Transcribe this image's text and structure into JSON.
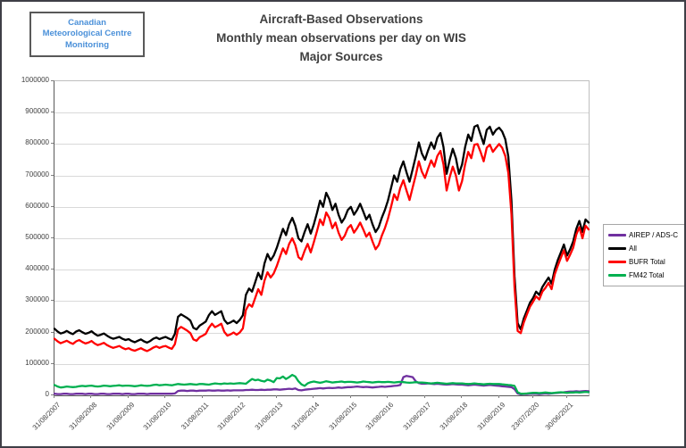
{
  "window": {
    "background": "#FFFFFF",
    "frame_border": "#3F3F46"
  },
  "logo": {
    "lines": [
      "Canadian",
      "Meteorological Centre",
      "Monitoring"
    ],
    "text_color": "#4A90D9",
    "border_color": "#595959"
  },
  "title": {
    "lines": [
      "Aircraft-Based Observations",
      "Monthly mean observations per day on WIS",
      "Major Sources"
    ],
    "color": "#404040"
  },
  "legend": {
    "border_color": "#A6A6A6",
    "items": [
      {
        "label": "AIREP / ADS-C",
        "color": "#7030A0"
      },
      {
        "label": "All",
        "color": "#000000"
      },
      {
        "label": "BUFR Total",
        "color": "#FF0000"
      },
      {
        "label": "FM42 Total",
        "color": "#00B050"
      }
    ]
  },
  "axis": {
    "grid_color": "#D9D9D9",
    "axis_color": "#808080",
    "tick_label_color": "#404040"
  },
  "chart_data": {
    "type": "line",
    "title": "Aircraft-Based Observations — Monthly mean observations per day on WIS — Major Sources",
    "xlabel": "",
    "ylabel": "",
    "unit": "observations per day",
    "value_scale": 1000,
    "note": "series values are monthly means in thousands of observations per day; multiply by value_scale for axis units",
    "ylim": [
      0,
      1000000
    ],
    "y_tick_step": 100000,
    "y_tick_labels": [
      "0",
      "100000",
      "200000",
      "300000",
      "400000",
      "500000",
      "600000",
      "700000",
      "800000",
      "900000",
      "1000000"
    ],
    "grid": "horizontal",
    "legend_position": "right",
    "n_points": 174,
    "x_start_label": "31/08/2007",
    "x_tick_labels": [
      "31/08/2007",
      "31/08/2008",
      "31/08/2009",
      "31/08/2010",
      "31/08/2011",
      "31/08/2012",
      "31/08/2013",
      "31/08/2014",
      "31/08/2015",
      "31/08/2016",
      "31/08/2017",
      "31/08/2018",
      "31/08/2019",
      "23/07/2020",
      "30/06/2021"
    ],
    "x_tick_indices": [
      0,
      12,
      24,
      36,
      48,
      60,
      72,
      84,
      96,
      108,
      120,
      132,
      144,
      155,
      166
    ],
    "series": [
      {
        "name": "AIREP / ADS-C",
        "color": "#7030A0",
        "values": [
          5,
          4,
          4,
          5,
          5,
          4,
          4,
          5,
          5,
          5,
          4,
          5,
          5,
          4,
          4,
          5,
          5,
          4,
          4,
          5,
          5,
          5,
          4,
          5,
          5,
          4,
          4,
          5,
          5,
          5,
          4,
          5,
          5,
          5,
          5,
          5,
          5,
          5,
          5,
          6,
          14,
          15,
          15,
          14,
          15,
          15,
          14,
          15,
          15,
          15,
          16,
          15,
          15,
          16,
          15,
          15,
          16,
          15,
          16,
          16,
          16,
          16,
          17,
          17,
          18,
          17,
          17,
          18,
          17,
          18,
          18,
          19,
          19,
          18,
          19,
          20,
          21,
          20,
          22,
          17,
          16,
          18,
          19,
          20,
          21,
          22,
          23,
          22,
          23,
          24,
          23,
          24,
          25,
          24,
          25,
          26,
          26,
          27,
          28,
          27,
          26,
          27,
          26,
          25,
          26,
          27,
          28,
          27,
          28,
          29,
          30,
          31,
          33,
          58,
          62,
          60,
          58,
          45,
          39,
          37,
          37,
          38,
          37,
          36,
          37,
          36,
          35,
          34,
          35,
          36,
          35,
          34,
          34,
          33,
          32,
          33,
          34,
          33,
          32,
          31,
          32,
          33,
          32,
          31,
          30,
          29,
          28,
          27,
          26,
          20,
          6,
          3,
          4,
          4,
          5,
          5,
          5,
          4,
          5,
          6,
          5,
          6,
          7,
          8,
          9,
          10,
          11,
          12,
          12,
          13,
          12,
          13,
          14,
          13
        ]
      },
      {
        "name": "All",
        "color": "#000000",
        "values": [
          212,
          203,
          197,
          200,
          205,
          199,
          195,
          203,
          207,
          201,
          196,
          199,
          204,
          196,
          190,
          193,
          197,
          190,
          184,
          180,
          183,
          186,
          180,
          176,
          179,
          173,
          169,
          174,
          178,
          172,
          168,
          173,
          180,
          184,
          179,
          183,
          186,
          181,
          177,
          196,
          250,
          258,
          252,
          246,
          238,
          215,
          210,
          222,
          228,
          235,
          255,
          268,
          256,
          262,
          268,
          240,
          228,
          232,
          238,
          230,
          240,
          255,
          320,
          340,
          330,
          360,
          390,
          370,
          420,
          450,
          430,
          445,
          470,
          500,
          530,
          510,
          545,
          565,
          540,
          500,
          490,
          520,
          545,
          515,
          545,
          580,
          620,
          600,
          645,
          625,
          590,
          610,
          575,
          550,
          565,
          590,
          600,
          575,
          590,
          610,
          585,
          560,
          575,
          545,
          520,
          535,
          565,
          590,
          620,
          660,
          700,
          680,
          720,
          745,
          710,
          680,
          720,
          760,
          805,
          770,
          750,
          780,
          805,
          785,
          820,
          835,
          790,
          705,
          750,
          785,
          755,
          705,
          735,
          790,
          830,
          810,
          855,
          860,
          830,
          800,
          845,
          855,
          830,
          845,
          852,
          840,
          815,
          760,
          620,
          380,
          230,
          210,
          245,
          270,
          295,
          310,
          330,
          320,
          345,
          360,
          375,
          355,
          400,
          430,
          455,
          480,
          445,
          465,
          490,
          530,
          555,
          520,
          560,
          550
        ]
      },
      {
        "name": "BUFR Total",
        "color": "#FF0000",
        "values": [
          180,
          172,
          166,
          170,
          174,
          168,
          164,
          172,
          176,
          170,
          165,
          168,
          173,
          165,
          160,
          163,
          167,
          160,
          155,
          151,
          154,
          157,
          151,
          147,
          150,
          145,
          142,
          146,
          150,
          145,
          141,
          146,
          152,
          156,
          151,
          155,
          157,
          152,
          148,
          163,
          210,
          218,
          212,
          206,
          198,
          178,
          174,
          185,
          190,
          196,
          215,
          228,
          217,
          222,
          228,
          202,
          190,
          194,
          200,
          193,
          200,
          213,
          272,
          290,
          282,
          310,
          338,
          320,
          365,
          392,
          375,
          388,
          412,
          440,
          468,
          450,
          482,
          500,
          478,
          440,
          432,
          460,
          482,
          455,
          488,
          522,
          560,
          542,
          582,
          565,
          532,
          550,
          518,
          495,
          508,
          532,
          542,
          518,
          532,
          550,
          528,
          505,
          518,
          490,
          465,
          478,
          508,
          532,
          562,
          600,
          640,
          622,
          660,
          685,
          652,
          622,
          662,
          700,
          745,
          712,
          692,
          722,
          748,
          728,
          762,
          778,
          735,
          652,
          695,
          728,
          700,
          652,
          682,
          735,
          775,
          755,
          798,
          800,
          775,
          745,
          788,
          798,
          775,
          788,
          800,
          788,
          762,
          708,
          575,
          345,
          205,
          198,
          232,
          258,
          282,
          298,
          315,
          305,
          330,
          342,
          358,
          338,
          385,
          412,
          438,
          462,
          428,
          448,
          470,
          512,
          535,
          500,
          540,
          528
        ]
      },
      {
        "name": "FM42 Total",
        "color": "#00B050",
        "values": [
          33,
          28,
          25,
          26,
          28,
          27,
          26,
          27,
          29,
          30,
          29,
          30,
          31,
          29,
          28,
          29,
          31,
          30,
          29,
          30,
          31,
          32,
          30,
          31,
          31,
          30,
          29,
          30,
          32,
          31,
          30,
          31,
          33,
          34,
          32,
          33,
          34,
          33,
          32,
          34,
          36,
          35,
          34,
          35,
          36,
          35,
          34,
          36,
          36,
          35,
          34,
          36,
          38,
          37,
          36,
          38,
          37,
          38,
          37,
          38,
          39,
          38,
          37,
          45,
          52,
          48,
          50,
          46,
          44,
          50,
          47,
          42,
          55,
          54,
          60,
          52,
          58,
          65,
          60,
          45,
          35,
          30,
          38,
          42,
          44,
          42,
          40,
          42,
          45,
          43,
          41,
          42,
          43,
          44,
          42,
          43,
          43,
          42,
          41,
          42,
          44,
          43,
          42,
          41,
          42,
          43,
          42,
          42,
          43,
          42,
          41,
          42,
          43,
          42,
          41,
          40,
          41,
          42,
          41,
          41,
          40,
          39,
          38,
          39,
          40,
          39,
          38,
          37,
          38,
          39,
          38,
          38,
          38,
          37,
          36,
          37,
          38,
          37,
          36,
          35,
          36,
          37,
          36,
          36,
          36,
          35,
          34,
          33,
          32,
          30,
          10,
          5,
          5,
          6,
          7,
          8,
          8,
          7,
          8,
          9,
          8,
          7,
          8,
          9,
          10,
          9,
          8,
          9,
          9,
          10,
          9,
          10,
          11,
          10
        ]
      }
    ]
  }
}
